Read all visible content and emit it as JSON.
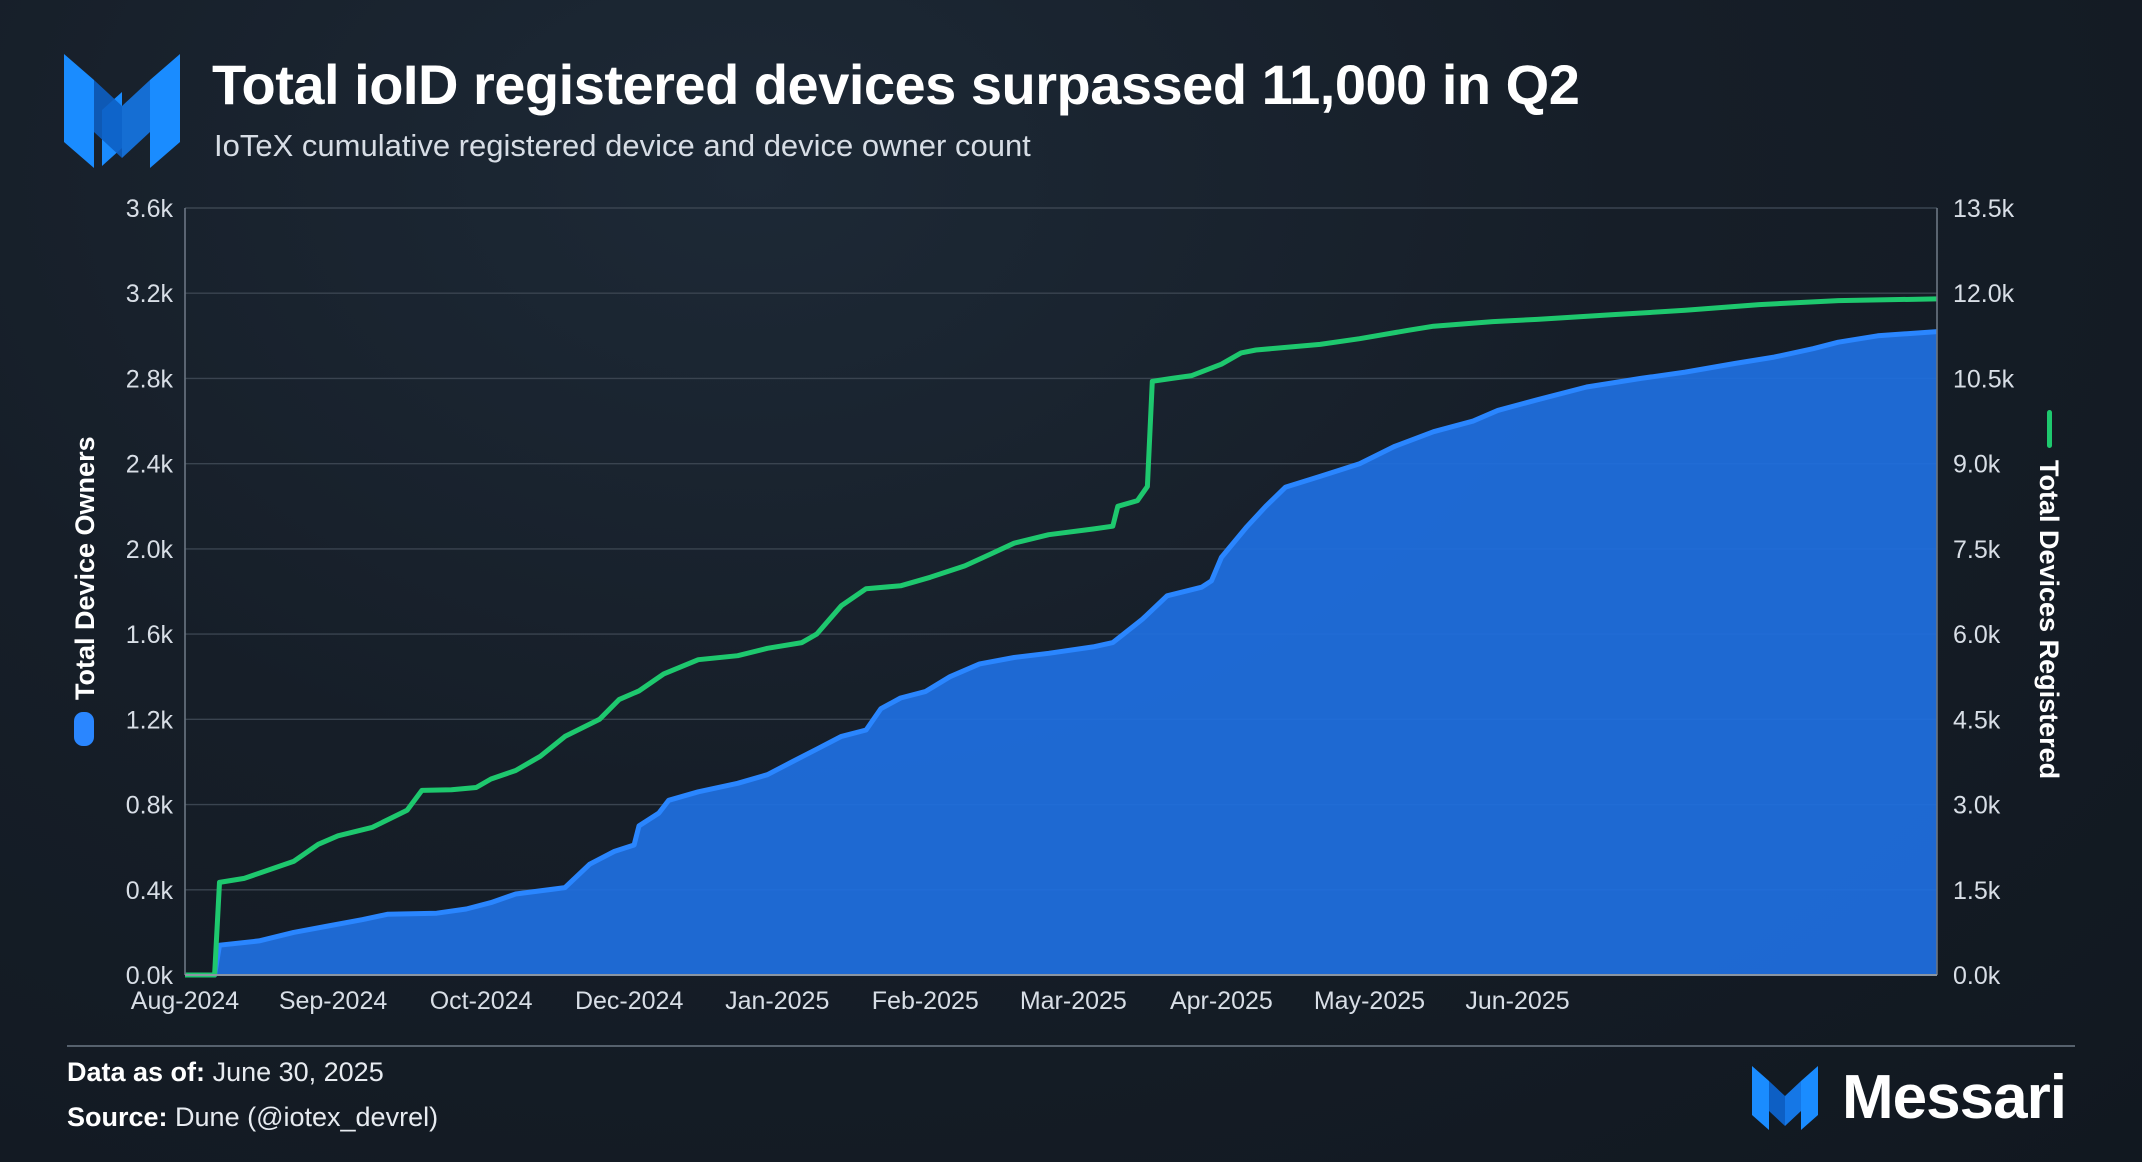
{
  "header": {
    "title": "Total ioID registered devices surpassed 11,000 in Q2",
    "subtitle": "IoTeX cumulative registered device and device owner count"
  },
  "footer": {
    "data_label": "Data as of:",
    "data_value": "June 30, 2025",
    "source_label": "Source:",
    "source_value": "Dune (@iotex_devrel)"
  },
  "brand": {
    "name": "Messari"
  },
  "colors": {
    "owners": "#1f6fe0",
    "owners_line": "#2a86ff",
    "devices": "#1ec86e",
    "grid": "#3a4450",
    "axis": "#d8dee6"
  },
  "chart_data": {
    "type": "area+line",
    "title": "Total ioID registered devices surpassed 11,000 in Q2",
    "subtitle": "IoTeX cumulative registered device and device owner count",
    "x_start": "2024-07-10",
    "x_end": "2025-06-30",
    "x_ticks": [
      {
        "date": "2024-07-10",
        "label": "Aug-2024"
      },
      {
        "date": "2024-08-09",
        "label": "Sep-2024"
      },
      {
        "date": "2024-09-08",
        "label": "Oct-2024"
      },
      {
        "date": "2024-10-08",
        "label": "Dec-2024"
      },
      {
        "date": "2024-11-07",
        "label": "Jan-2025"
      },
      {
        "date": "2024-12-07",
        "label": "Feb-2025"
      },
      {
        "date": "2025-01-06",
        "label": "Mar-2025"
      },
      {
        "date": "2025-02-05",
        "label": "Apr-2025"
      },
      {
        "date": "2025-03-07",
        "label": "May-2025"
      },
      {
        "date": "2025-04-06",
        "label": "Jun-2025"
      }
    ],
    "y_left": {
      "label": "Total Device Owners",
      "range": [
        0,
        3600
      ],
      "ticks": [
        0,
        400,
        800,
        1200,
        1600,
        2000,
        2400,
        2800,
        3200,
        3600
      ],
      "tick_labels": [
        "0.0k",
        "0.4k",
        "0.8k",
        "1.2k",
        "1.6k",
        "2.0k",
        "2.4k",
        "2.8k",
        "3.2k",
        "3.6k"
      ]
    },
    "y_right": {
      "label": "Total Devices Registered",
      "range": [
        0,
        13500
      ],
      "ticks": [
        0,
        1500,
        3000,
        4500,
        6000,
        7500,
        9000,
        10500,
        12000,
        13500
      ],
      "tick_labels": [
        "0.0k",
        "1.5k",
        "3.0k",
        "4.5k",
        "6.0k",
        "7.5k",
        "9.0k",
        "10.5k",
        "12.0k",
        "13.5k"
      ]
    },
    "series": [
      {
        "name": "Total Device Owners",
        "axis": "left",
        "style": "area",
        "points": [
          [
            "2024-07-10",
            0
          ],
          [
            "2024-07-16",
            0
          ],
          [
            "2024-07-17",
            140
          ],
          [
            "2024-07-25",
            160
          ],
          [
            "2024-08-01",
            200
          ],
          [
            "2024-08-08",
            230
          ],
          [
            "2024-08-15",
            260
          ],
          [
            "2024-08-20",
            285
          ],
          [
            "2024-08-30",
            290
          ],
          [
            "2024-09-05",
            310
          ],
          [
            "2024-09-10",
            340
          ],
          [
            "2024-09-15",
            380
          ],
          [
            "2024-09-25",
            410
          ],
          [
            "2024-09-30",
            520
          ],
          [
            "2024-10-05",
            580
          ],
          [
            "2024-10-09",
            610
          ],
          [
            "2024-10-10",
            700
          ],
          [
            "2024-10-14",
            760
          ],
          [
            "2024-10-16",
            820
          ],
          [
            "2024-10-22",
            860
          ],
          [
            "2024-10-30",
            900
          ],
          [
            "2024-11-05",
            940
          ],
          [
            "2024-11-10",
            1000
          ],
          [
            "2024-11-15",
            1060
          ],
          [
            "2024-11-20",
            1120
          ],
          [
            "2024-11-25",
            1150
          ],
          [
            "2024-11-28",
            1250
          ],
          [
            "2024-12-02",
            1300
          ],
          [
            "2024-12-07",
            1330
          ],
          [
            "2024-12-12",
            1400
          ],
          [
            "2024-12-18",
            1460
          ],
          [
            "2024-12-25",
            1490
          ],
          [
            "2025-01-01",
            1510
          ],
          [
            "2025-01-10",
            1540
          ],
          [
            "2025-01-14",
            1560
          ],
          [
            "2025-01-20",
            1670
          ],
          [
            "2025-01-25",
            1780
          ],
          [
            "2025-02-01",
            1820
          ],
          [
            "2025-02-03",
            1850
          ],
          [
            "2025-02-05",
            1960
          ],
          [
            "2025-02-10",
            2100
          ],
          [
            "2025-02-14",
            2200
          ],
          [
            "2025-02-18",
            2290
          ],
          [
            "2025-02-25",
            2340
          ],
          [
            "2025-03-05",
            2400
          ],
          [
            "2025-03-12",
            2480
          ],
          [
            "2025-03-20",
            2550
          ],
          [
            "2025-03-28",
            2600
          ],
          [
            "2025-04-02",
            2650
          ],
          [
            "2025-04-10",
            2700
          ],
          [
            "2025-04-20",
            2760
          ],
          [
            "2025-05-01",
            2800
          ],
          [
            "2025-05-10",
            2830
          ],
          [
            "2025-05-20",
            2870
          ],
          [
            "2025-05-28",
            2900
          ],
          [
            "2025-06-05",
            2940
          ],
          [
            "2025-06-10",
            2970
          ],
          [
            "2025-06-18",
            3000
          ],
          [
            "2025-06-30",
            3020
          ]
        ]
      },
      {
        "name": "Total Devices Registered",
        "axis": "right",
        "style": "line",
        "points": [
          [
            "2024-07-10",
            0
          ],
          [
            "2024-07-16",
            0
          ],
          [
            "2024-07-17",
            1630
          ],
          [
            "2024-07-22",
            1700
          ],
          [
            "2024-07-27",
            1850
          ],
          [
            "2024-08-01",
            2000
          ],
          [
            "2024-08-06",
            2300
          ],
          [
            "2024-08-10",
            2450
          ],
          [
            "2024-08-17",
            2600
          ],
          [
            "2024-08-24",
            2900
          ],
          [
            "2024-08-27",
            3250
          ],
          [
            "2024-09-02",
            3260
          ],
          [
            "2024-09-07",
            3300
          ],
          [
            "2024-09-10",
            3450
          ],
          [
            "2024-09-15",
            3600
          ],
          [
            "2024-09-20",
            3850
          ],
          [
            "2024-09-25",
            4200
          ],
          [
            "2024-10-02",
            4500
          ],
          [
            "2024-10-06",
            4850
          ],
          [
            "2024-10-10",
            5000
          ],
          [
            "2024-10-15",
            5300
          ],
          [
            "2024-10-22",
            5550
          ],
          [
            "2024-10-30",
            5620
          ],
          [
            "2024-11-05",
            5750
          ],
          [
            "2024-11-12",
            5850
          ],
          [
            "2024-11-15",
            6000
          ],
          [
            "2024-11-20",
            6500
          ],
          [
            "2024-11-25",
            6800
          ],
          [
            "2024-12-02",
            6850
          ],
          [
            "2024-12-08",
            7000
          ],
          [
            "2024-12-15",
            7200
          ],
          [
            "2024-12-20",
            7400
          ],
          [
            "2024-12-25",
            7600
          ],
          [
            "2025-01-01",
            7750
          ],
          [
            "2025-01-10",
            7850
          ],
          [
            "2025-01-14",
            7900
          ],
          [
            "2025-01-15",
            8250
          ],
          [
            "2025-01-19",
            8350
          ],
          [
            "2025-01-21",
            8600
          ],
          [
            "2025-01-22",
            10450
          ],
          [
            "2025-01-26",
            10500
          ],
          [
            "2025-01-30",
            10550
          ],
          [
            "2025-02-05",
            10750
          ],
          [
            "2025-02-09",
            10950
          ],
          [
            "2025-02-12",
            11000
          ],
          [
            "2025-02-25",
            11100
          ],
          [
            "2025-03-05",
            11200
          ],
          [
            "2025-03-15",
            11350
          ],
          [
            "2025-03-20",
            11420
          ],
          [
            "2025-04-01",
            11500
          ],
          [
            "2025-04-10",
            11540
          ],
          [
            "2025-04-25",
            11620
          ],
          [
            "2025-05-10",
            11700
          ],
          [
            "2025-05-25",
            11800
          ],
          [
            "2025-06-10",
            11870
          ],
          [
            "2025-06-30",
            11900
          ]
        ]
      }
    ]
  }
}
